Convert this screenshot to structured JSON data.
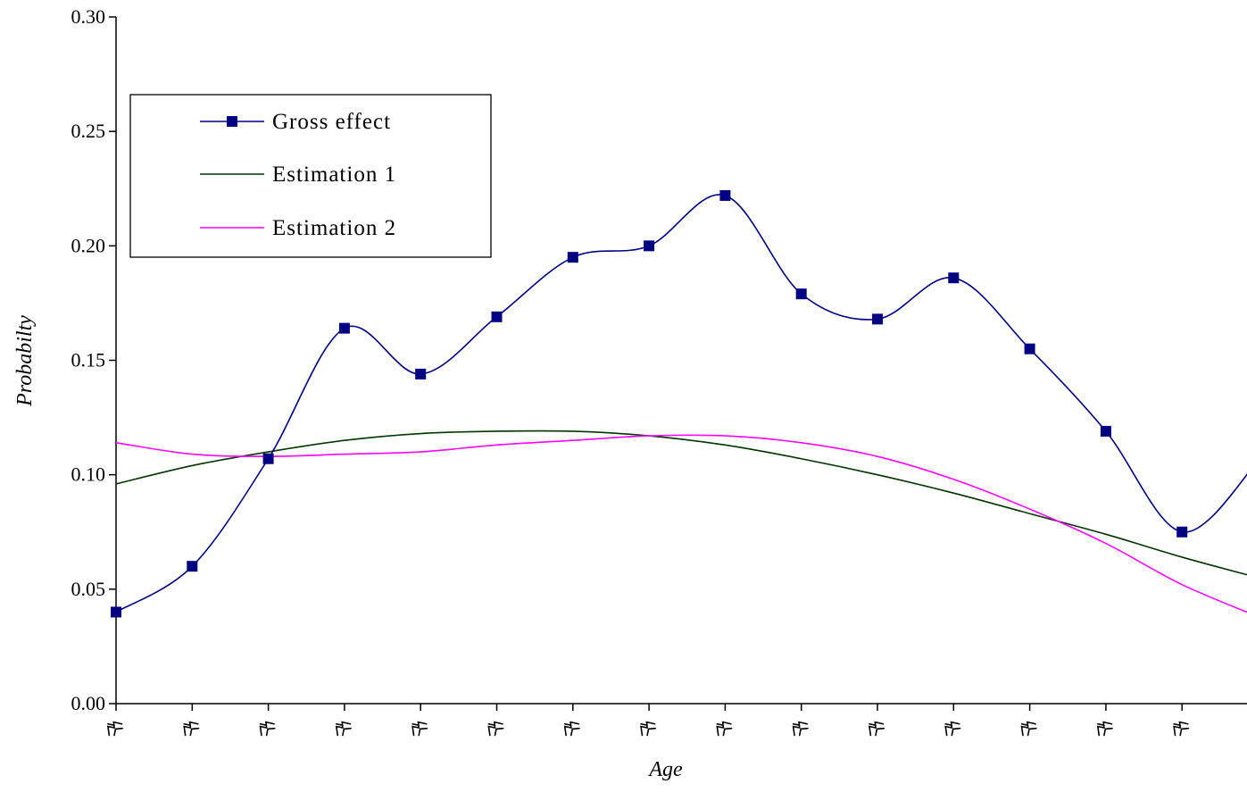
{
  "chart_data": {
    "type": "line",
    "xlabel": "Age",
    "ylabel": "Probabilty",
    "ylim": [
      0,
      0.3
    ],
    "yticks": [
      "0.00",
      "0.05",
      "0.10",
      "0.15",
      "0.20",
      "0.25",
      "0.30"
    ],
    "x_tick_count": 16,
    "x_tick_labels_legible": false,
    "legend_position": "top-left",
    "grid": false,
    "series": [
      {
        "name": "Gross effect",
        "color": "#000080",
        "marker": "square",
        "values": [
          0.04,
          0.06,
          0.107,
          0.164,
          0.144,
          0.169,
          0.195,
          0.2,
          0.222,
          0.179,
          0.168,
          0.186,
          0.155,
          0.119,
          0.075,
          0.106
        ]
      },
      {
        "name": "Estimation 1",
        "color": "#003300",
        "marker": "none",
        "values": [
          0.096,
          0.104,
          0.11,
          0.115,
          0.118,
          0.119,
          0.119,
          0.117,
          0.113,
          0.107,
          0.1,
          0.092,
          0.083,
          0.074,
          0.064,
          0.055
        ]
      },
      {
        "name": "Estimation 2",
        "color": "#ff00ff",
        "marker": "none",
        "values": [
          0.114,
          0.109,
          0.108,
          0.109,
          0.11,
          0.113,
          0.115,
          0.117,
          0.117,
          0.114,
          0.108,
          0.098,
          0.085,
          0.07,
          0.052,
          0.038
        ]
      }
    ]
  }
}
